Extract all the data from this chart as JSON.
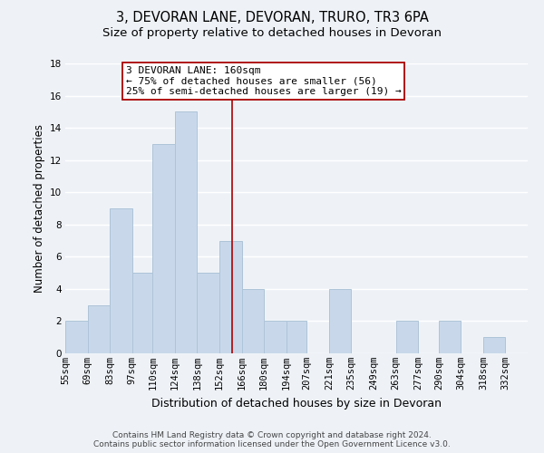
{
  "title": "3, DEVORAN LANE, DEVORAN, TRURO, TR3 6PA",
  "subtitle": "Size of property relative to detached houses in Devoran",
  "xlabel": "Distribution of detached houses by size in Devoran",
  "ylabel": "Number of detached properties",
  "bin_labels": [
    "55sqm",
    "69sqm",
    "83sqm",
    "97sqm",
    "110sqm",
    "124sqm",
    "138sqm",
    "152sqm",
    "166sqm",
    "180sqm",
    "194sqm",
    "207sqm",
    "221sqm",
    "235sqm",
    "249sqm",
    "263sqm",
    "277sqm",
    "290sqm",
    "304sqm",
    "318sqm",
    "332sqm"
  ],
  "bin_edges": [
    55,
    69,
    83,
    97,
    110,
    124,
    138,
    152,
    166,
    180,
    194,
    207,
    221,
    235,
    249,
    263,
    277,
    290,
    304,
    318,
    332,
    346
  ],
  "counts": [
    2,
    3,
    9,
    5,
    13,
    15,
    5,
    7,
    4,
    2,
    2,
    0,
    4,
    0,
    0,
    2,
    0,
    2,
    0,
    1,
    0
  ],
  "bar_color": "#c8d8ea",
  "bar_edge_color": "#aec4d8",
  "property_size": 160,
  "vline_color": "#aa0000",
  "annotation_line1": "3 DEVORAN LANE: 160sqm",
  "annotation_line2": "← 75% of detached houses are smaller (56)",
  "annotation_line3": "25% of semi-detached houses are larger (19) →",
  "annotation_box_color": "#ffffff",
  "annotation_box_edge": "#aa0000",
  "ylim": [
    0,
    18
  ],
  "yticks": [
    0,
    2,
    4,
    6,
    8,
    10,
    12,
    14,
    16,
    18
  ],
  "footer_line1": "Contains HM Land Registry data © Crown copyright and database right 2024.",
  "footer_line2": "Contains public sector information licensed under the Open Government Licence v3.0.",
  "background_color": "#eef2f7",
  "grid_color": "#ffffff",
  "title_fontsize": 10.5,
  "subtitle_fontsize": 9.5,
  "axis_label_fontsize": 8.5,
  "tick_fontsize": 7.5,
  "annotation_fontsize": 8,
  "footer_fontsize": 6.5
}
